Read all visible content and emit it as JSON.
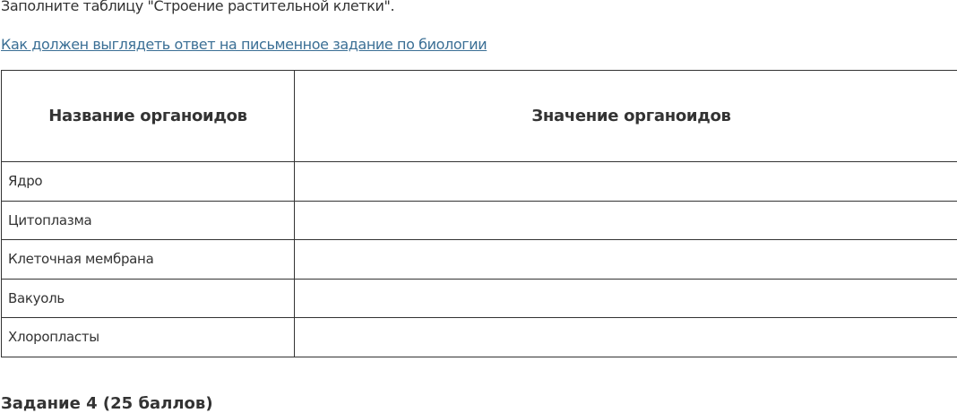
{
  "intro": "Заполните таблицу \"Строение растительной клетки\".",
  "link": "Как должен выглядеть ответ на письменное задание по биологии",
  "table": {
    "headers": [
      "Название органоидов",
      "Значение органоидов"
    ],
    "rows": [
      {
        "name": "Ядро",
        "value": ""
      },
      {
        "name": "Цитоплазма",
        "value": ""
      },
      {
        "name": "Клеточная мембрана",
        "value": ""
      },
      {
        "name": "Вакуоль",
        "value": ""
      },
      {
        "name": "Хлоропласты",
        "value": ""
      }
    ]
  },
  "next_heading": "Задание 4 (25 баллов)"
}
